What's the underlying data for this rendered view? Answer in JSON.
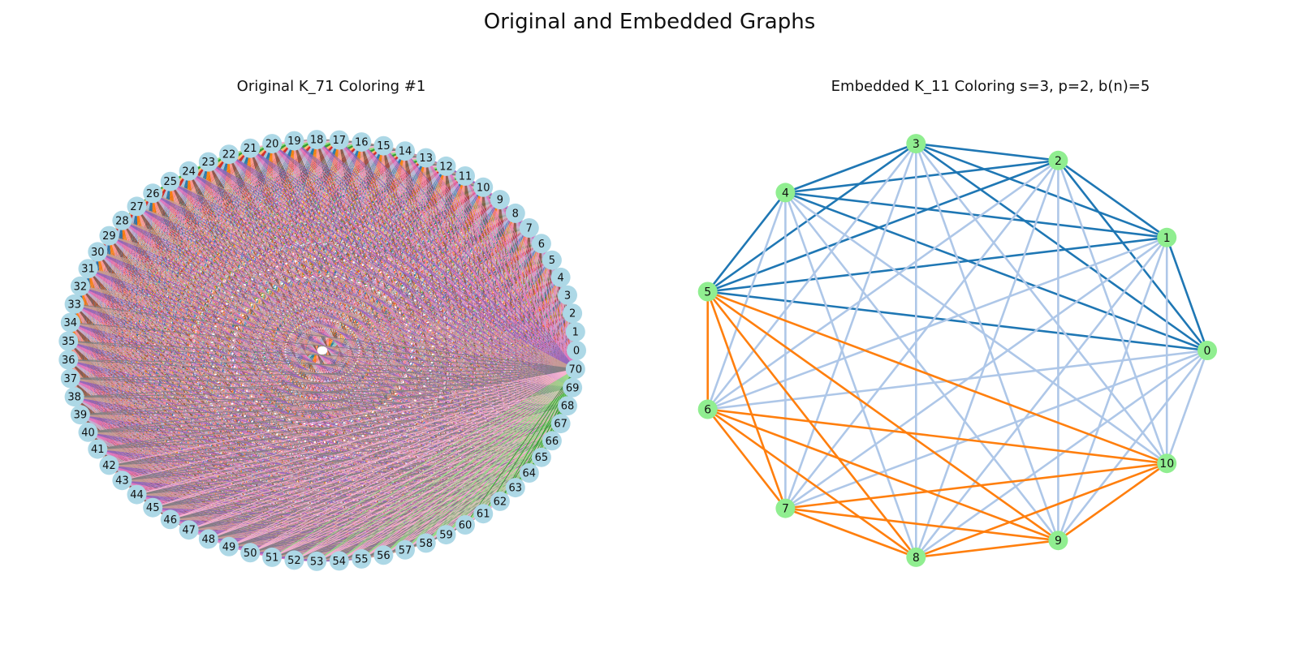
{
  "figure": {
    "title": "Original and Embedded Graphs"
  },
  "left_panel": {
    "title": "Original K_71 Coloring #1",
    "node_count": 71,
    "node_color": "#add8e6",
    "palette": [
      "#ff9896",
      "#8c564b",
      "#c5b0d5",
      "#e377c2",
      "#9467bd",
      "#c49c94",
      "#7f7f7f",
      "#f7b6d2",
      "#98df8a",
      "#2ca02c",
      "#ffbb78",
      "#d62728",
      "#aec7e8",
      "#1f77b4",
      "#ff7f0e"
    ]
  },
  "right_panel": {
    "title": "Embedded K_11 Coloring s=3, p=2, b(n)=5",
    "node_color": "#90ee90",
    "nodes": [
      "0",
      "1",
      "2",
      "3",
      "4",
      "5",
      "6",
      "7",
      "8",
      "9",
      "10"
    ],
    "edge_colors": {
      "blue": "#1f77b4",
      "orange": "#ff7f0e",
      "light": "#aec7e8"
    },
    "blue_clique": [
      0,
      1,
      2,
      3,
      4,
      5
    ],
    "orange_clique": [
      5,
      6,
      7,
      8,
      9,
      10
    ]
  }
}
